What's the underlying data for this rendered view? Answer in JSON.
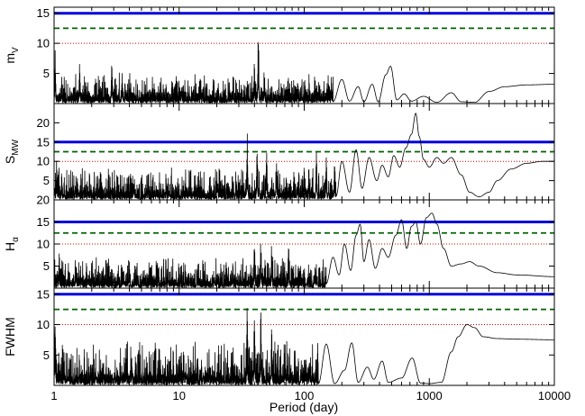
{
  "chart_data": {
    "type": "line",
    "xlabel": "Period (day)",
    "x_scale": "log",
    "xlim": [
      1,
      10000
    ],
    "x_tick_labels": [
      "1",
      "10",
      "100",
      "1000",
      "10000"
    ],
    "threshold_colors": {
      "solid": "#0000dd",
      "dashed": "#006400",
      "dotted": "#cc0000"
    },
    "panels": [
      {
        "id": "mv",
        "ylabel": "m",
        "ylabel_sub": "V",
        "ylim": [
          0,
          16
        ],
        "yticks": [
          5,
          10,
          15
        ],
        "thresholds": {
          "solid": 15.0,
          "dashed": 12.5,
          "dotted": 10.0
        },
        "noise": {
          "base": 2.0,
          "amp": 3.2
        },
        "peaks": [
          [
            1.02,
            9.5
          ],
          [
            1.6,
            7.2
          ],
          [
            2.9,
            8.5
          ],
          [
            3.5,
            6.5
          ],
          [
            40,
            7.8
          ],
          [
            43,
            13.2
          ],
          [
            48,
            7.0
          ],
          [
            165,
            3.8
          ],
          [
            210,
            3.2
          ],
          [
            350,
            3.5
          ],
          [
            490,
            6.2
          ]
        ],
        "smooth": [
          [
            170,
            0.3
          ],
          [
            200,
            4.0
          ],
          [
            230,
            0.4
          ],
          [
            270,
            2.8
          ],
          [
            300,
            0.3
          ],
          [
            350,
            3.2
          ],
          [
            390,
            0.3
          ],
          [
            450,
            4.8
          ],
          [
            490,
            6.2
          ],
          [
            550,
            0.6
          ],
          [
            630,
            1.6
          ],
          [
            720,
            0.4
          ],
          [
            900,
            1.2
          ],
          [
            1150,
            0.2
          ],
          [
            1500,
            1.8
          ],
          [
            1800,
            0.3
          ],
          [
            2300,
            0.2
          ],
          [
            3000,
            2.0
          ],
          [
            4000,
            2.8
          ],
          [
            6000,
            3.1
          ],
          [
            10000,
            3.2
          ]
        ]
      },
      {
        "id": "smw",
        "ylabel": "S",
        "ylabel_sub": "MW",
        "ylim": [
          0,
          25
        ],
        "yticks": [
          5,
          10,
          15,
          20
        ],
        "thresholds": {
          "solid": 15.0,
          "dashed": 12.5,
          "dotted": 10.0
        },
        "noise": {
          "base": 2.5,
          "amp": 6.5
        },
        "peaks": [
          [
            1.05,
            11.5
          ],
          [
            1.15,
            6.5
          ],
          [
            35,
            18.5
          ],
          [
            42,
            16.0
          ],
          [
            50,
            17.0
          ],
          [
            60,
            13.0
          ],
          [
            100,
            10.5
          ],
          [
            125,
            15.0
          ],
          [
            150,
            14.5
          ],
          [
            175,
            12.0
          ]
        ],
        "smooth": [
          [
            180,
            1.0
          ],
          [
            200,
            10.0
          ],
          [
            230,
            2.0
          ],
          [
            260,
            13.0
          ],
          [
            290,
            3.0
          ],
          [
            330,
            11.0
          ],
          [
            380,
            5.0
          ],
          [
            420,
            9.0
          ],
          [
            470,
            6.0
          ],
          [
            520,
            11.5
          ],
          [
            580,
            8.5
          ],
          [
            650,
            13.5
          ],
          [
            720,
            17.0
          ],
          [
            780,
            22.5
          ],
          [
            830,
            16.5
          ],
          [
            900,
            10.5
          ],
          [
            1000,
            8.5
          ],
          [
            1150,
            11.0
          ],
          [
            1300,
            9.5
          ],
          [
            1500,
            11.0
          ],
          [
            1800,
            6.5
          ],
          [
            2100,
            2.0
          ],
          [
            2500,
            0.8
          ],
          [
            3000,
            2.0
          ],
          [
            3500,
            5.0
          ],
          [
            4500,
            8.0
          ],
          [
            6000,
            9.5
          ],
          [
            8000,
            10.0
          ],
          [
            10000,
            10.0
          ]
        ]
      },
      {
        "id": "halpha",
        "ylabel": "H",
        "ylabel_sub": "α",
        "ylim": [
          0,
          20
        ],
        "yticks": [
          5,
          10,
          15,
          20
        ],
        "thresholds": {
          "solid": 15.0,
          "dashed": 12.5,
          "dotted": 10.0
        },
        "noise": {
          "base": 2.5,
          "amp": 5.0
        },
        "peaks": [
          [
            1.1,
            8.5
          ],
          [
            1.5,
            7.5
          ],
          [
            4.0,
            7.5
          ],
          [
            40,
            13.2
          ],
          [
            45,
            11.5
          ],
          [
            55,
            11.0
          ],
          [
            75,
            10.5
          ]
        ],
        "smooth": [
          [
            150,
            1.0
          ],
          [
            170,
            7.0
          ],
          [
            190,
            3.0
          ],
          [
            210,
            10.0
          ],
          [
            235,
            4.0
          ],
          [
            260,
            12.0
          ],
          [
            280,
            14.5
          ],
          [
            300,
            6.0
          ],
          [
            330,
            11.0
          ],
          [
            370,
            4.5
          ],
          [
            420,
            9.0
          ],
          [
            470,
            7.0
          ],
          [
            540,
            12.0
          ],
          [
            600,
            15.5
          ],
          [
            660,
            9.0
          ],
          [
            720,
            14.0
          ],
          [
            780,
            15.0
          ],
          [
            850,
            10.0
          ],
          [
            950,
            16.0
          ],
          [
            1050,
            17.0
          ],
          [
            1150,
            14.5
          ],
          [
            1300,
            9.0
          ],
          [
            1500,
            5.0
          ],
          [
            1800,
            5.5
          ],
          [
            2100,
            6.0
          ],
          [
            2500,
            5.0
          ],
          [
            3500,
            3.5
          ],
          [
            5000,
            3.0
          ],
          [
            10000,
            2.6
          ]
        ]
      },
      {
        "id": "fwhm",
        "ylabel": "FWHM",
        "ylabel_sub": "",
        "ylim": [
          0,
          16
        ],
        "yticks": [
          5,
          10,
          15
        ],
        "thresholds": {
          "solid": 15.0,
          "dashed": 12.5,
          "dotted": 10.0
        },
        "noise": {
          "base": 2.0,
          "amp": 5.5
        },
        "peaks": [
          [
            1.02,
            12.5
          ],
          [
            1.2,
            5.5
          ],
          [
            35,
            13.5
          ],
          [
            40,
            12.5
          ],
          [
            45,
            13.2
          ],
          [
            55,
            10.0
          ],
          [
            70,
            7.0
          ],
          [
            110,
            6.0
          ]
        ],
        "smooth": [
          [
            130,
            0.3
          ],
          [
            150,
            6.8
          ],
          [
            175,
            0.3
          ],
          [
            210,
            2.5
          ],
          [
            240,
            7.0
          ],
          [
            270,
            0.5
          ],
          [
            320,
            3.0
          ],
          [
            360,
            1.0
          ],
          [
            420,
            4.0
          ],
          [
            470,
            0.5
          ],
          [
            600,
            1.2
          ],
          [
            730,
            4.5
          ],
          [
            850,
            0.4
          ],
          [
            1000,
            0.3
          ],
          [
            1250,
            0.5
          ],
          [
            1500,
            5.5
          ],
          [
            1700,
            8.0
          ],
          [
            2000,
            10.0
          ],
          [
            2300,
            9.5
          ],
          [
            2700,
            8.0
          ],
          [
            3500,
            7.7
          ],
          [
            5000,
            7.6
          ],
          [
            10000,
            7.5
          ]
        ]
      }
    ]
  }
}
